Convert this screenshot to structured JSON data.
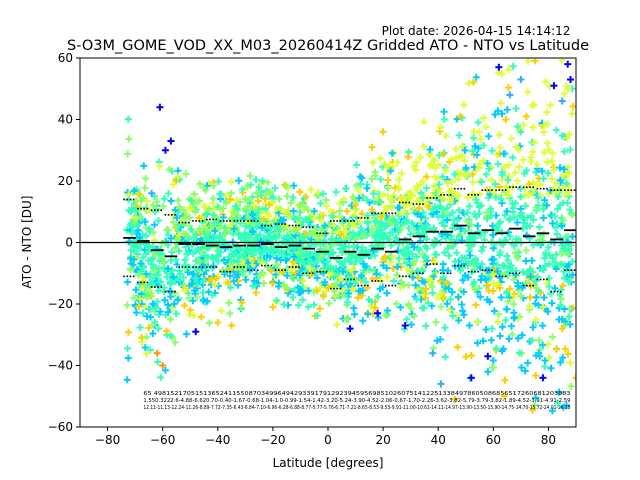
{
  "plot_date": "Plot date: 2026-04-15 14:14:12",
  "chart_data": {
    "type": "scatter",
    "title": "S-O3M_GOME_VOD_XX_M03_20260414Z Gridded ATO - NTO vs Latitude",
    "xlabel": "Latitude [degrees]",
    "ylabel": "ATO - NTO [DU]",
    "xlim": [
      -90,
      90
    ],
    "ylim": [
      -60,
      60
    ],
    "xticks": [
      -80,
      -60,
      -40,
      -20,
      0,
      20,
      40,
      60,
      80
    ],
    "yticks": [
      -60,
      -40,
      -20,
      0,
      20,
      40,
      60
    ],
    "zero_line": 0,
    "marker": "+",
    "colors": {
      "cyan": "#00ccff",
      "mint": "#33ffbb",
      "lightgreen": "#88ff66",
      "yellow": "#ddff33",
      "orange": "#ffcc00",
      "deeporange": "#ff9900",
      "blue": "#0000ff",
      "skyblue": "#33aaff",
      "black": "#000000"
    },
    "scatter_envelope": [
      {
        "lat": -72,
        "low": -14,
        "high": 21
      },
      {
        "lat": -66,
        "low": -40,
        "high": 30
      },
      {
        "lat": -60,
        "low": -45,
        "high": 26
      },
      {
        "lat": -54,
        "low": -34,
        "high": 24
      },
      {
        "lat": -45,
        "low": -27,
        "high": 22
      },
      {
        "lat": -35,
        "low": -24,
        "high": 21
      },
      {
        "lat": -25,
        "low": -21,
        "high": 23
      },
      {
        "lat": -15,
        "low": -21,
        "high": 20
      },
      {
        "lat": -5,
        "low": -24,
        "high": 17
      },
      {
        "lat": 5,
        "low": -29,
        "high": 21
      },
      {
        "lat": 15,
        "low": -26,
        "high": 29
      },
      {
        "lat": 25,
        "low": -27,
        "high": 32
      },
      {
        "lat": 35,
        "low": -34,
        "high": 40
      },
      {
        "lat": 45,
        "low": -40,
        "high": 47
      },
      {
        "lat": 55,
        "low": -47,
        "high": 55
      },
      {
        "lat": 65,
        "low": -52,
        "high": 58
      },
      {
        "lat": 75,
        "low": -55,
        "high": 60
      },
      {
        "lat": 88,
        "low": -55,
        "high": 60
      }
    ],
    "bin_mean": {
      "lat": [
        -72,
        -67,
        -62,
        -57,
        -52,
        -47,
        -42,
        -37,
        -32,
        -27,
        -22,
        -17,
        -12,
        -7,
        -2,
        3,
        8,
        13,
        18,
        23,
        28,
        33,
        38,
        43,
        48,
        53,
        58,
        63,
        68,
        73,
        78,
        83,
        88
      ],
      "value": [
        1.5,
        0.5,
        -2.5,
        -4.5,
        -0.5,
        -0.5,
        -1,
        -1.5,
        -1,
        -1,
        -0.5,
        -1.5,
        -1,
        -2,
        -3,
        -5,
        -3,
        -4,
        -2,
        -3,
        1,
        2,
        3.5,
        3.5,
        5.5,
        3,
        4,
        3,
        4.5,
        2,
        3,
        1,
        4
      ]
    },
    "bin_upper": {
      "lat": [
        -72,
        -67,
        -62,
        -57,
        -52,
        -47,
        -42,
        -37,
        -32,
        -27,
        -22,
        -17,
        -12,
        -7,
        -2,
        3,
        8,
        13,
        18,
        23,
        28,
        33,
        38,
        43,
        48,
        53,
        58,
        63,
        68,
        73,
        78,
        83,
        88
      ],
      "value": [
        14,
        11,
        10.5,
        9,
        6.5,
        7,
        7.5,
        7,
        7,
        7,
        5.5,
        6,
        5.5,
        5,
        3,
        7,
        7,
        8,
        9.5,
        9.5,
        13,
        12.5,
        14.5,
        15.5,
        17.5,
        15.5,
        17,
        17,
        18,
        18,
        17.5,
        17,
        17
      ]
    },
    "bin_lower": {
      "lat": [
        -72,
        -67,
        -62,
        -57,
        -52,
        -47,
        -42,
        -37,
        -32,
        -27,
        -22,
        -17,
        -12,
        -7,
        -2,
        3,
        8,
        13,
        18,
        23,
        28,
        33,
        38,
        43,
        48,
        53,
        58,
        63,
        68,
        73,
        78,
        83,
        88
      ],
      "value": [
        -11,
        -13,
        -14.5,
        -16,
        -8,
        -8,
        -8,
        -9.5,
        -8,
        -9,
        -7.5,
        -9,
        -8,
        -10,
        -9.5,
        -15,
        -12,
        -14,
        -12.5,
        -14,
        -11,
        -10,
        -7,
        -10,
        -7.5,
        -9.5,
        -9,
        -11,
        -10,
        -14,
        -12,
        -16,
        -9
      ]
    },
    "annotation_rows": [
      "65 49815217051513652411550870349964942933917912923945956985102607514122513384978605086856517260681203983",
      "1.550.3222.6-4.88-6.620.70-0.40-1.67-0.68-1.04-1.0-0.99-1.54-1.42-3.20-5.24-3.90-4.52-2.06-0.67-1.70-2.26-3.62-3.82-5.79-3.79-3.82-1.89-4.52-3.91-4.91-2.59",
      "12.11-11.13-12.24-11.26-8.89-7.72-7.35-6.43-6.84-7.10-6.96-6.28-6.88-8.77-5.77-5.76-6.71-7.21-8.65-8.53-9.53-9.91-11.00-10.61-14.11-14.97-13.90-13.50-15.90-14.75-14.70-15.72-24.01-26.38"
    ]
  }
}
